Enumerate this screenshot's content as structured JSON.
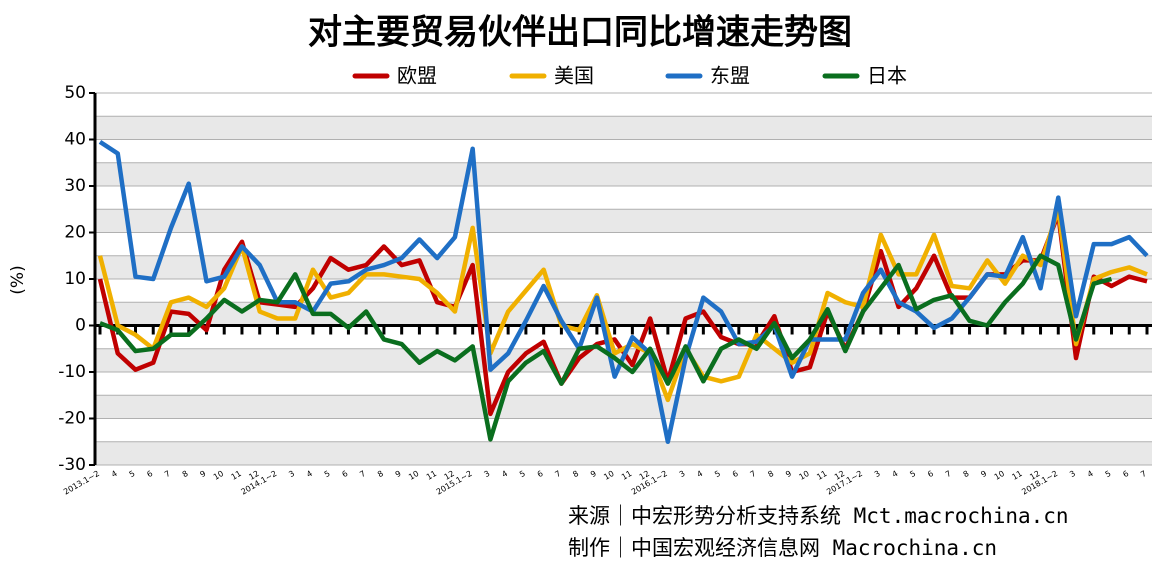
{
  "chart_data": {
    "type": "line",
    "title": "对主要贸易伙伴出口同比增速走势图",
    "y_label": "(%)",
    "categories": [
      "2013.1~2",
      "4",
      "5",
      "6",
      "7",
      "8",
      "9",
      "10",
      "11",
      "12",
      "2014.1~2",
      "3",
      "4",
      "5",
      "6",
      "7",
      "8",
      "9",
      "10",
      "11",
      "12",
      "2015.1~2",
      "3",
      "4",
      "5",
      "6",
      "7",
      "8",
      "9",
      "10",
      "11",
      "12",
      "2016.1~2",
      "3",
      "4",
      "5",
      "6",
      "7",
      "8",
      "9",
      "10",
      "11",
      "12",
      "2017.1~2",
      "3",
      "4",
      "5",
      "6",
      "7",
      "8",
      "9",
      "10",
      "11",
      "12",
      "2018.1~2",
      "3",
      "4",
      "5",
      "6",
      "7"
    ],
    "series": [
      {
        "name": "欧盟",
        "color": "#c00000",
        "values": [
          10,
          -6,
          -9.5,
          -8,
          3,
          2.5,
          -1,
          12,
          18,
          5,
          4.5,
          4,
          8,
          14.5,
          12,
          13,
          17,
          13,
          14,
          5,
          4,
          13,
          -19,
          -10,
          -6,
          -3.5,
          -12.5,
          -7,
          -4,
          -3,
          -8.5,
          1.5,
          -12,
          1.5,
          3,
          -2.5,
          -4,
          -4,
          2,
          -10,
          -9,
          3,
          -5,
          3,
          16,
          4,
          8,
          15,
          6,
          6,
          11,
          11,
          14,
          14,
          24,
          -7,
          10.5,
          8.5,
          10.5,
          9.5
        ]
      },
      {
        "name": "美国",
        "color": "#f0b000",
        "values": [
          15,
          0,
          -2,
          -5,
          5,
          6,
          4,
          8,
          17,
          3,
          1.5,
          1.5,
          12,
          6,
          7,
          11,
          11,
          10.5,
          10,
          7,
          3,
          21,
          -6,
          3,
          7.5,
          12,
          0,
          -1,
          6.5,
          -6,
          -4,
          -6,
          -16,
          -5,
          -11,
          -12,
          -11,
          -2,
          -5,
          -8,
          -6,
          7,
          5,
          4,
          19.5,
          11,
          11,
          19.5,
          8.5,
          8,
          14,
          9,
          15,
          13,
          25,
          -4,
          10,
          11.5,
          12.5,
          11
        ]
      },
      {
        "name": "东盟",
        "color": "#1f6fc5",
        "values": [
          39.5,
          37,
          10.5,
          10,
          21,
          30.5,
          9.5,
          10.5,
          17,
          13,
          5,
          5,
          3,
          9,
          9.5,
          12,
          13,
          14.5,
          18.5,
          14.5,
          19,
          38,
          -9.5,
          -6,
          1,
          8.5,
          1,
          -5,
          6,
          -11,
          -2.5,
          -6,
          -25,
          -7,
          6,
          3,
          -4,
          -3.5,
          0,
          -11,
          -3,
          -3,
          -3,
          7,
          12,
          5,
          3,
          -0.5,
          1.5,
          6,
          11,
          10.5,
          19,
          8,
          27.5,
          2,
          17.5,
          17.5,
          19,
          15
        ]
      },
      {
        "name": "日本",
        "color": "#0a6e1e",
        "values": [
          0.5,
          -1,
          -5.5,
          -5,
          -2,
          -2,
          1.5,
          5.5,
          3,
          5.5,
          5,
          11,
          2.5,
          2.5,
          -0.5,
          3,
          -3,
          -4,
          -8,
          -5.5,
          -7.5,
          -4.5,
          -24.5,
          -12,
          -8,
          -5.5,
          -12.5,
          -5,
          -4.5,
          -7,
          -10,
          -5,
          -12.5,
          -4.5,
          -12,
          -5,
          -3,
          -5,
          0.5,
          -7,
          -3,
          3.5,
          -5.5,
          3,
          8,
          13,
          3.5,
          5.5,
          6.5,
          1,
          0,
          5,
          9,
          15,
          13,
          -3,
          9,
          10,
          null,
          null
        ]
      }
    ],
    "ylim": [
      -30,
      50
    ],
    "yticks": [
      -30,
      -20,
      -10,
      0,
      10,
      20,
      30,
      40,
      50
    ],
    "footer": [
      "来源｜中宏形势分析支持系统 Mct.macrochina.cn",
      "制作｜中国宏观经济信息网  Macrochina.cn"
    ]
  }
}
